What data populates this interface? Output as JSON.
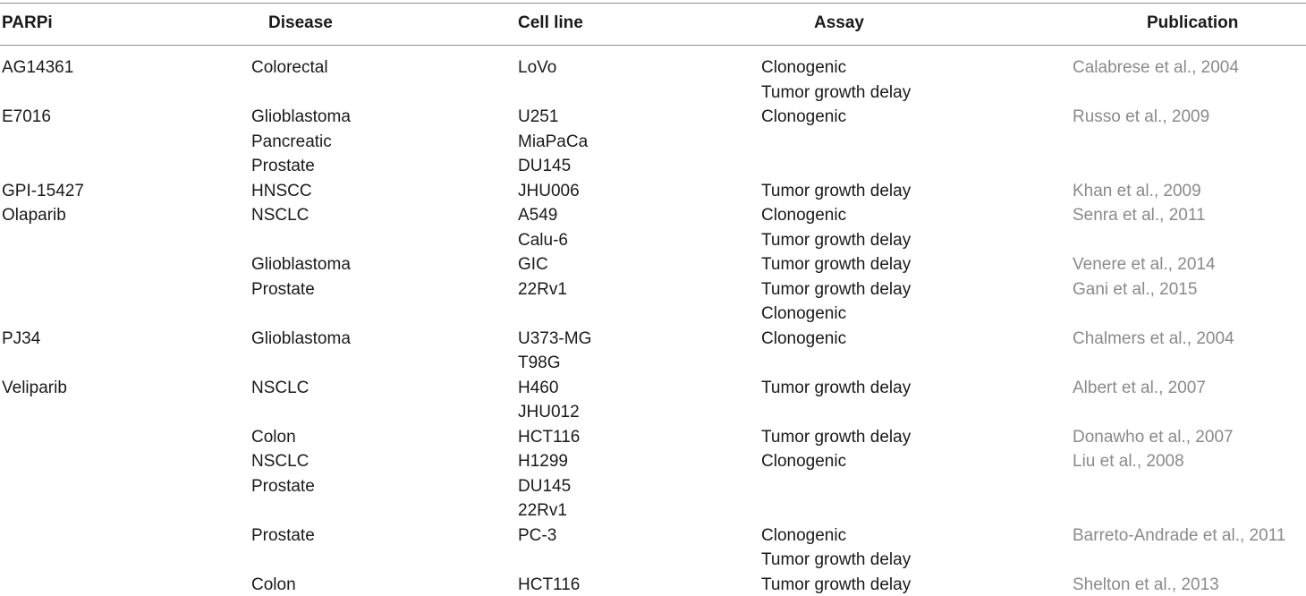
{
  "table": {
    "headers": [
      "PARPi",
      "Disease",
      "Cell line",
      "Assay",
      "Publication"
    ],
    "rows": [
      [
        "AG14361",
        "Colorectal",
        "LoVo",
        "Clonogenic",
        "Calabrese et al., 2004"
      ],
      [
        "",
        "",
        "",
        "Tumor growth delay",
        ""
      ],
      [
        "E7016",
        "Glioblastoma",
        "U251",
        "Clonogenic",
        "Russo et al., 2009"
      ],
      [
        "",
        "Pancreatic",
        "MiaPaCa",
        "",
        ""
      ],
      [
        "",
        "Prostate",
        "DU145",
        "",
        ""
      ],
      [
        "GPI-15427",
        "HNSCC",
        "JHU006",
        "Tumor growth delay",
        "Khan et al., 2009"
      ],
      [
        "Olaparib",
        "NSCLC",
        "A549",
        "Clonogenic",
        "Senra et al., 2011"
      ],
      [
        "",
        "",
        "Calu-6",
        "Tumor growth delay",
        ""
      ],
      [
        "",
        "Glioblastoma",
        "GIC",
        "Tumor growth delay",
        "Venere et al., 2014"
      ],
      [
        "",
        "Prostate",
        "22Rv1",
        "Tumor growth delay",
        "Gani et al., 2015"
      ],
      [
        "",
        "",
        "",
        "Clonogenic",
        ""
      ],
      [
        "PJ34",
        "Glioblastoma",
        "U373-MG",
        "Clonogenic",
        "Chalmers et al., 2004"
      ],
      [
        "",
        "",
        "T98G",
        "",
        ""
      ],
      [
        "Veliparib",
        "NSCLC",
        "H460",
        "Tumor growth delay",
        "Albert et al., 2007"
      ],
      [
        "",
        "",
        "JHU012",
        "",
        ""
      ],
      [
        "",
        "Colon",
        "HCT116",
        "Tumor growth delay",
        "Donawho et al., 2007"
      ],
      [
        "",
        "NSCLC",
        "H1299",
        "Clonogenic",
        "Liu et al., 2008"
      ],
      [
        "",
        "Prostate",
        "DU145",
        "",
        ""
      ],
      [
        "",
        "",
        "22Rv1",
        "",
        ""
      ],
      [
        "",
        "Prostate",
        "PC-3",
        "Clonogenic",
        "Barreto-Andrade et al., 2011"
      ],
      [
        "",
        "",
        "",
        "Tumor growth delay",
        ""
      ],
      [
        "",
        "Colon",
        "HCT116",
        "Tumor growth delay",
        "Shelton et al., 2013"
      ]
    ]
  }
}
